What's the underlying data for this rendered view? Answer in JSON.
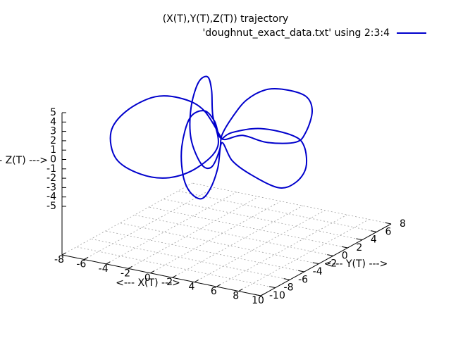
{
  "chart_data": {
    "type": "line3d",
    "title": "(X(T),Y(T),Z(T)) trajectory",
    "xlabel": "<--- X(T) --->",
    "ylabel": "<--- Y(T) --->",
    "zlabel": "<--- Z(T) --->",
    "xlim": [
      -8,
      10
    ],
    "ylim": [
      -10,
      8
    ],
    "zlim": [
      -5,
      5
    ],
    "xticks": [
      -8,
      -6,
      -4,
      -2,
      0,
      2,
      4,
      6,
      8,
      10
    ],
    "yticks": [
      -10,
      -8,
      -6,
      -4,
      -2,
      0,
      2,
      4,
      6,
      8
    ],
    "zticks": [
      -5,
      -4,
      -3,
      -2,
      -1,
      0,
      1,
      2,
      3,
      4,
      5
    ],
    "grid": true,
    "legend": "top-right",
    "series": [
      {
        "name": "'doughnut_exact_data.txt' using 2:3:4",
        "color": "#0000cc",
        "x": [
          1.1,
          -0.3,
          -1.9,
          -4.1,
          -6.3,
          -7.5,
          -7.1,
          -5.2,
          -3.0,
          -0.8,
          0.8,
          0.4,
          0.3,
          0.0,
          -0.7,
          -1.3,
          -1.3,
          -0.5,
          0.3,
          0.9,
          1.1,
          1.9,
          3.0,
          4.5,
          6.0,
          7.6,
          8.1,
          7.6,
          6.8,
          4.6,
          2.7,
          1.1,
          0.5,
          -0.3,
          -1.4,
          -2.0,
          -1.9,
          -1.4,
          -0.5,
          0.2,
          0.8,
          1.1,
          1.9,
          3.3,
          5.5,
          6.8,
          7.6,
          7.5,
          6.6,
          4.1,
          1.9,
          1.1
        ],
        "y": [
          -1.8,
          -2.1,
          -2.6,
          -3.1,
          -3.7,
          -4.0,
          -3.9,
          -3.4,
          -2.8,
          -2.3,
          -1.9,
          -2.0,
          -2.0,
          -2.1,
          -2.3,
          -2.4,
          -2.4,
          -2.2,
          -2.0,
          -1.8,
          -1.8,
          -1.6,
          -1.3,
          -0.9,
          -0.5,
          -0.1,
          0.0,
          -0.1,
          -0.3,
          -0.9,
          -1.4,
          -1.8,
          -1.9,
          -2.1,
          -2.4,
          -2.6,
          -2.6,
          -2.4,
          -2.2,
          -2.0,
          -1.9,
          -1.8,
          -1.6,
          -1.2,
          -0.7,
          -0.3,
          -0.1,
          -0.2,
          -0.4,
          -1.0,
          -1.6,
          -1.8
        ],
        "z": [
          0.9,
          3.7,
          4.8,
          4.7,
          2.9,
          0.5,
          -2.3,
          -3.7,
          -3.8,
          -2.4,
          0.1,
          3.4,
          6.0,
          7.4,
          6.7,
          3.9,
          0.6,
          -2.0,
          -2.2,
          -0.3,
          1.3,
          3.3,
          5.3,
          6.6,
          6.8,
          6.3,
          4.8,
          2.5,
          1.3,
          1.0,
          1.5,
          0.9,
          2.7,
          3.7,
          2.8,
          -0.3,
          -3.3,
          -5.1,
          -5.7,
          -4.5,
          -2.2,
          0.5,
          -1.3,
          -2.6,
          -3.7,
          -3.0,
          -1.3,
          1.0,
          2.0,
          2.4,
          1.7,
          0.9
        ]
      }
    ]
  }
}
